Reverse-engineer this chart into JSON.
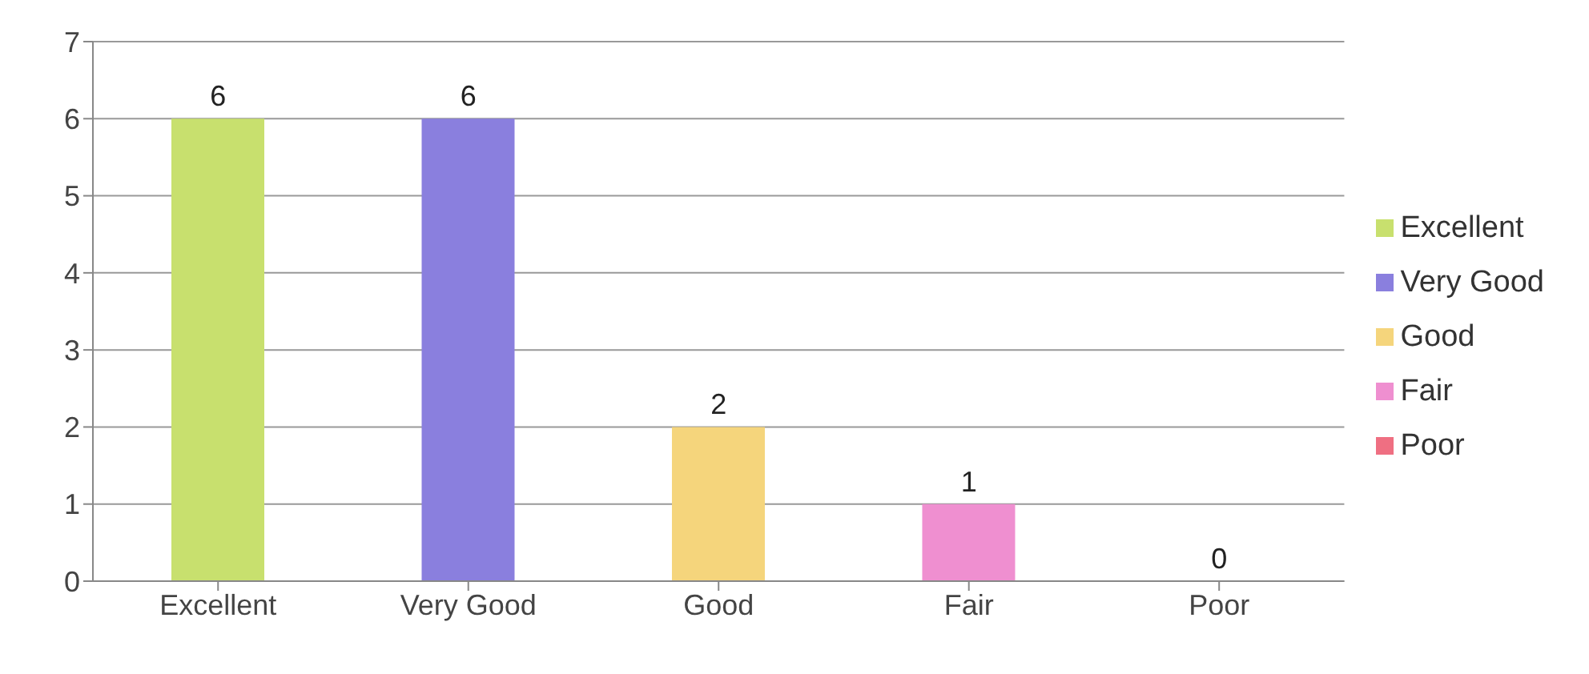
{
  "chart_data": {
    "type": "bar",
    "categories": [
      "Excellent",
      "Very Good",
      "Good",
      "Fair",
      "Poor"
    ],
    "series": [
      {
        "name": "Excellent",
        "color": "#c8e06e",
        "values": [
          6,
          null,
          null,
          null,
          null
        ]
      },
      {
        "name": "Very Good",
        "color": "#8a7fde",
        "values": [
          null,
          6,
          null,
          null,
          null
        ]
      },
      {
        "name": "Good",
        "color": "#f5d57c",
        "values": [
          null,
          null,
          2,
          null,
          null
        ]
      },
      {
        "name": "Fair",
        "color": "#ef8fd0",
        "values": [
          null,
          null,
          null,
          1,
          null
        ]
      },
      {
        "name": "Poor",
        "color": "#ef6f82",
        "values": [
          null,
          null,
          null,
          null,
          0
        ]
      }
    ],
    "ylim": [
      0,
      7
    ],
    "yticks": [
      0,
      1,
      2,
      3,
      4,
      5,
      6,
      7
    ],
    "grid": "y",
    "legend": "right",
    "data_labels": true
  }
}
